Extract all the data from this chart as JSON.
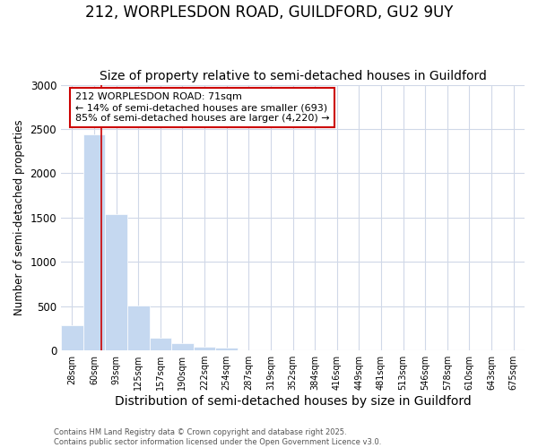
{
  "title": "212, WORPLESDON ROAD, GUILDFORD, GU2 9UY",
  "subtitle": "Size of property relative to semi-detached houses in Guildford",
  "xlabel": "Distribution of semi-detached houses by size in Guildford",
  "ylabel": "Number of semi-detached properties",
  "bins": [
    "28sqm",
    "60sqm",
    "93sqm",
    "125sqm",
    "157sqm",
    "190sqm",
    "222sqm",
    "254sqm",
    "287sqm",
    "319sqm",
    "352sqm",
    "384sqm",
    "416sqm",
    "449sqm",
    "481sqm",
    "513sqm",
    "546sqm",
    "578sqm",
    "610sqm",
    "643sqm",
    "675sqm"
  ],
  "values": [
    280,
    2440,
    1540,
    510,
    140,
    80,
    45,
    28,
    0,
    0,
    0,
    0,
    0,
    0,
    0,
    0,
    0,
    0,
    0,
    0,
    0
  ],
  "bar_color": "#c5d8f0",
  "bar_edge_color": "#c5d8f0",
  "vline_color": "#cc0000",
  "annotation_text": "212 WORPLESDON ROAD: 71sqm\n← 14% of semi-detached houses are smaller (693)\n85% of semi-detached houses are larger (4,220) →",
  "annotation_box_color": "#ffffff",
  "annotation_box_edge": "#cc0000",
  "ylim": [
    0,
    3000
  ],
  "yticks": [
    0,
    500,
    1000,
    1500,
    2000,
    2500,
    3000
  ],
  "footer": "Contains HM Land Registry data © Crown copyright and database right 2025.\nContains public sector information licensed under the Open Government Licence v3.0.",
  "bg_color": "#ffffff",
  "plot_bg_color": "#ffffff",
  "title_fontsize": 12,
  "subtitle_fontsize": 10,
  "xlabel_fontsize": 10,
  "ylabel_fontsize": 8.5
}
